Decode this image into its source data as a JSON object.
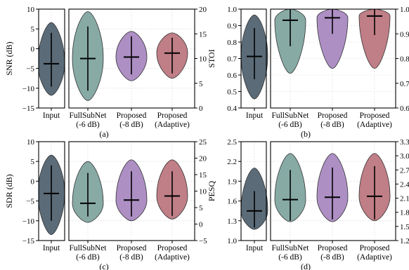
{
  "categories": [
    "Input",
    "FullSubNet (-6 dB)",
    "Proposed (-8 dB)",
    "Proposed (Adaptive)"
  ],
  "category_lines": [
    [
      "Input"
    ],
    [
      "FullSubNet",
      "(-6 dB)"
    ],
    [
      "Proposed",
      "(-8 dB)"
    ],
    [
      "Proposed",
      "(Adaptive)"
    ]
  ],
  "colors": {
    "input": "#5b6b78",
    "fullsubnet": "#87aaa5",
    "proposed_8": "#ad8fc4",
    "proposed_adaptive": "#c07e86"
  },
  "chart_data": [
    {
      "type": "violin",
      "subplot_label": "(a)",
      "ylabel": "SNR (dB)",
      "ylim": [
        -15,
        10
      ],
      "yticks": [
        -15,
        -10,
        -5,
        0,
        5,
        10
      ],
      "y2lim": [
        0,
        20
      ],
      "y2ticks": [
        0,
        5,
        10,
        15,
        20
      ],
      "grid": true,
      "series": [
        {
          "category": "Input",
          "axis": "left",
          "min": -11.8,
          "max": 6.6,
          "whisker_low": -9.6,
          "whisker_high": 4.0,
          "median": -3.8
        },
        {
          "category": "FullSubNet (-6 dB)",
          "axis": "right",
          "min": 1.5,
          "max": 19.5,
          "whisker_low": 3.5,
          "whisker_high": 16.5,
          "median": 10.0
        },
        {
          "category": "Proposed (-8 dB)",
          "axis": "right",
          "min": 5.5,
          "max": 15.5,
          "whisker_low": 6.8,
          "whisker_high": 14.5,
          "median": 10.3
        },
        {
          "category": "Proposed (Adaptive)",
          "axis": "right",
          "min": 6.0,
          "max": 15.2,
          "whisker_low": 7.0,
          "whisker_high": 14.2,
          "median": 11.1
        }
      ]
    },
    {
      "type": "violin",
      "subplot_label": "(b)",
      "ylabel": "STOI",
      "ylim": [
        0.4,
        1.0
      ],
      "yticks": [
        0.4,
        0.5,
        0.6,
        0.7,
        0.8,
        0.9,
        1.0
      ],
      "y2lim": [
        0.6,
        1.0
      ],
      "y2ticks": [
        0.6,
        0.7,
        0.8,
        0.9,
        1.0
      ],
      "grid": true,
      "series": [
        {
          "category": "Input",
          "axis": "left",
          "min": 0.455,
          "max": 0.965,
          "whisker_low": 0.575,
          "whisker_high": 0.885,
          "median": 0.713
        },
        {
          "category": "FullSubNet (-6 dB)",
          "axis": "right",
          "min": 0.74,
          "max": 1.0,
          "whisker_low": 0.85,
          "whisker_high": 1.0,
          "median": 0.955
        },
        {
          "category": "Proposed (-8 dB)",
          "axis": "right",
          "min": 0.76,
          "max": 1.0,
          "whisker_low": 0.9,
          "whisker_high": 1.0,
          "median": 0.965
        },
        {
          "category": "Proposed (Adaptive)",
          "axis": "right",
          "min": 0.76,
          "max": 1.0,
          "whisker_low": 0.895,
          "whisker_high": 1.0,
          "median": 0.972
        }
      ]
    },
    {
      "type": "violin",
      "subplot_label": "(c)",
      "ylabel": "SDR (dB)",
      "ylim": [
        -15,
        10
      ],
      "yticks": [
        -15,
        -10,
        -5,
        0,
        5,
        10
      ],
      "y2lim": [
        -5,
        25
      ],
      "y2ticks": [
        -5,
        0,
        5,
        10,
        15,
        20,
        25
      ],
      "grid": true,
      "series": [
        {
          "category": "Input",
          "axis": "left",
          "min": -13.5,
          "max": 6.6,
          "whisker_low": -10.0,
          "whisker_high": 4.0,
          "median": -3.1
        },
        {
          "category": "FullSubNet (-6 dB)",
          "axis": "right",
          "min": 0.5,
          "max": 19.0,
          "whisker_low": 2.3,
          "whisker_high": 15.5,
          "median": 6.3
        },
        {
          "category": "Proposed (-8 dB)",
          "axis": "right",
          "min": 1.0,
          "max": 19.5,
          "whisker_low": 2.3,
          "whisker_high": 16.0,
          "median": 7.3
        },
        {
          "category": "Proposed (Adaptive)",
          "axis": "right",
          "min": 1.5,
          "max": 19.5,
          "whisker_low": 2.5,
          "whisker_high": 16.0,
          "median": 8.5
        }
      ]
    },
    {
      "type": "violin",
      "subplot_label": "(d)",
      "ylabel": "PESQ",
      "ylim": [
        1.0,
        2.5
      ],
      "yticks": [
        1.0,
        1.3,
        1.6,
        1.9,
        2.2,
        2.5
      ],
      "y2lim": [
        1.2,
        3.3
      ],
      "y2ticks": [
        1.2,
        1.5,
        1.8,
        2.1,
        2.4,
        2.7,
        3.0,
        3.3
      ],
      "grid": true,
      "series": [
        {
          "category": "Input",
          "axis": "left",
          "min": 1.17,
          "max": 2.1,
          "whisker_low": 1.2,
          "whisker_high": 1.75,
          "median": 1.45
        },
        {
          "category": "FullSubNet (-6 dB)",
          "axis": "right",
          "min": 1.6,
          "max": 3.05,
          "whisker_low": 1.62,
          "whisker_high": 2.7,
          "median": 2.07
        },
        {
          "category": "Proposed (-8 dB)",
          "axis": "right",
          "min": 1.6,
          "max": 3.05,
          "whisker_low": 1.65,
          "whisker_high": 2.75,
          "median": 2.12
        },
        {
          "category": "Proposed (Adaptive)",
          "axis": "right",
          "min": 1.62,
          "max": 3.05,
          "whisker_low": 1.65,
          "whisker_high": 2.78,
          "median": 2.14
        }
      ]
    }
  ]
}
